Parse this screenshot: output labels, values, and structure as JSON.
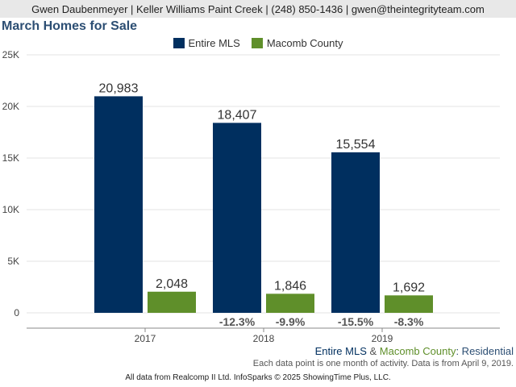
{
  "header": {
    "text": "Gwen Daubenmeyer | Keller Williams Paint Creek | (248) 850-1436 | gwen@theintegrityteam.com"
  },
  "colors": {
    "entire_mls": "#002f5f",
    "macomb": "#5f8f2a",
    "title": "#2c4e73",
    "pct_label": "#555555"
  },
  "chart_data": {
    "type": "bar",
    "title": "March Homes for Sale",
    "xlabel": "",
    "ylabel": "",
    "categories": [
      "2017",
      "2018",
      "2019"
    ],
    "series": [
      {
        "name": "Entire MLS",
        "values": [
          20983,
          18407,
          15554
        ],
        "value_labels": [
          "20,983",
          "18,407",
          "15,554"
        ],
        "change_labels": [
          "",
          "-12.3%",
          "-15.5%"
        ]
      },
      {
        "name": "Macomb County",
        "values": [
          2048,
          1846,
          1692
        ],
        "value_labels": [
          "2,048",
          "1,846",
          "1,692"
        ],
        "change_labels": [
          "",
          "-9.9%",
          "-8.3%"
        ]
      }
    ],
    "ylim": [
      0,
      25000
    ],
    "y_ticks": [
      0,
      5000,
      10000,
      15000,
      20000,
      25000
    ],
    "y_tick_labels": [
      "0",
      "5K",
      "10K",
      "15K",
      "20K",
      "25K"
    ],
    "grid": true,
    "legend_position": "top-center"
  },
  "footer": {
    "series_label_1": "Entire MLS",
    "series_sep": " & ",
    "series_label_2": "Macomb County",
    "series_suffix": ": Residential",
    "note": "Each data point is one month of activity. Data is from April 9, 2019.",
    "credit": "All data from Realcomp II Ltd. InfoSparks © 2025 ShowingTime Plus, LLC."
  }
}
